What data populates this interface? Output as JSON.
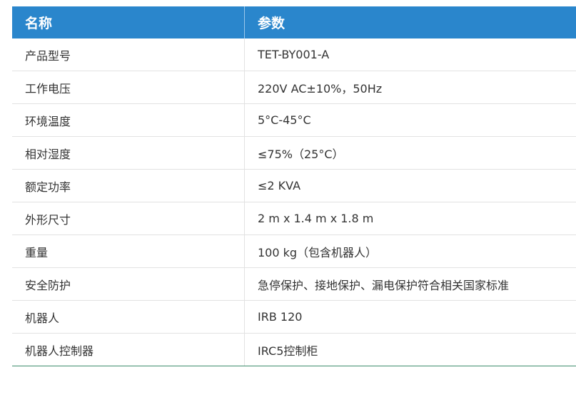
{
  "table": {
    "header": [
      "名称",
      "参数"
    ],
    "rows": [
      [
        "产品型号",
        "TET-BY001-A"
      ],
      [
        "工作电压",
        "220V AC±10%，50Hz"
      ],
      [
        "环境温度",
        "5°C-45°C"
      ],
      [
        "相对湿度",
        "≤75%（25°C）"
      ],
      [
        "额定功率",
        "≤2 KVA"
      ],
      [
        "外形尺寸",
        "2 m x 1.4 m x 1.8 m"
      ],
      [
        "重量",
        "100 kg（包含机器人）"
      ],
      [
        "安全防护",
        "急停保护、接地保护、漏电保护符合相关国家标准"
      ],
      [
        "机器人",
        "IRB 120"
      ],
      [
        "机器人控制器",
        "IRC5控制柜"
      ]
    ]
  }
}
